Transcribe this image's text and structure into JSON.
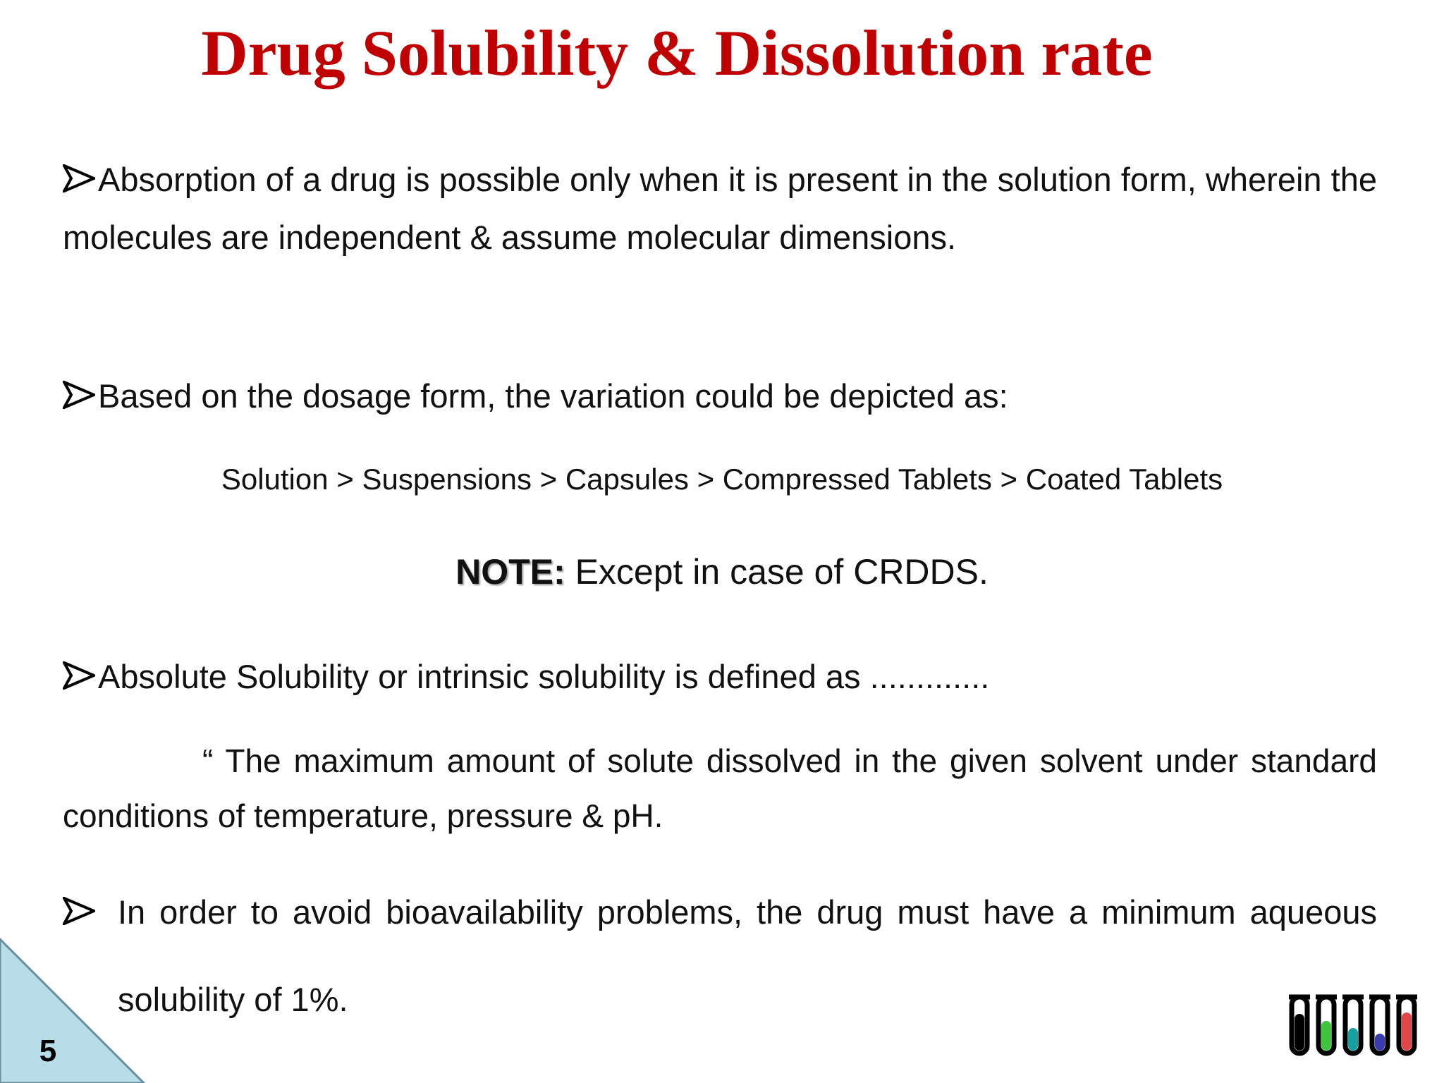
{
  "title": "Drug Solubility & Dissolution rate",
  "bullets": [
    "Absorption of a drug is possible only when it is present in the solution form, wherein the molecules are independent & assume molecular dimensions.",
    "Based on the dosage form, the variation could be depicted as:",
    "Absolute Solubility or intrinsic solubility is defined as .............",
    "In order to avoid bioavailability problems, the drug must have a minimum aqueous solubility of 1%."
  ],
  "ranking": "Solution > Suspensions > Capsules > Compressed Tablets > Coated Tablets",
  "note": {
    "label": "NOTE:",
    "text": "Except in case of CRDDS."
  },
  "definition": "“ The maximum amount of solute dissolved in the given solvent under standard conditions of temperature, pressure & pH.",
  "page_number": "5"
}
